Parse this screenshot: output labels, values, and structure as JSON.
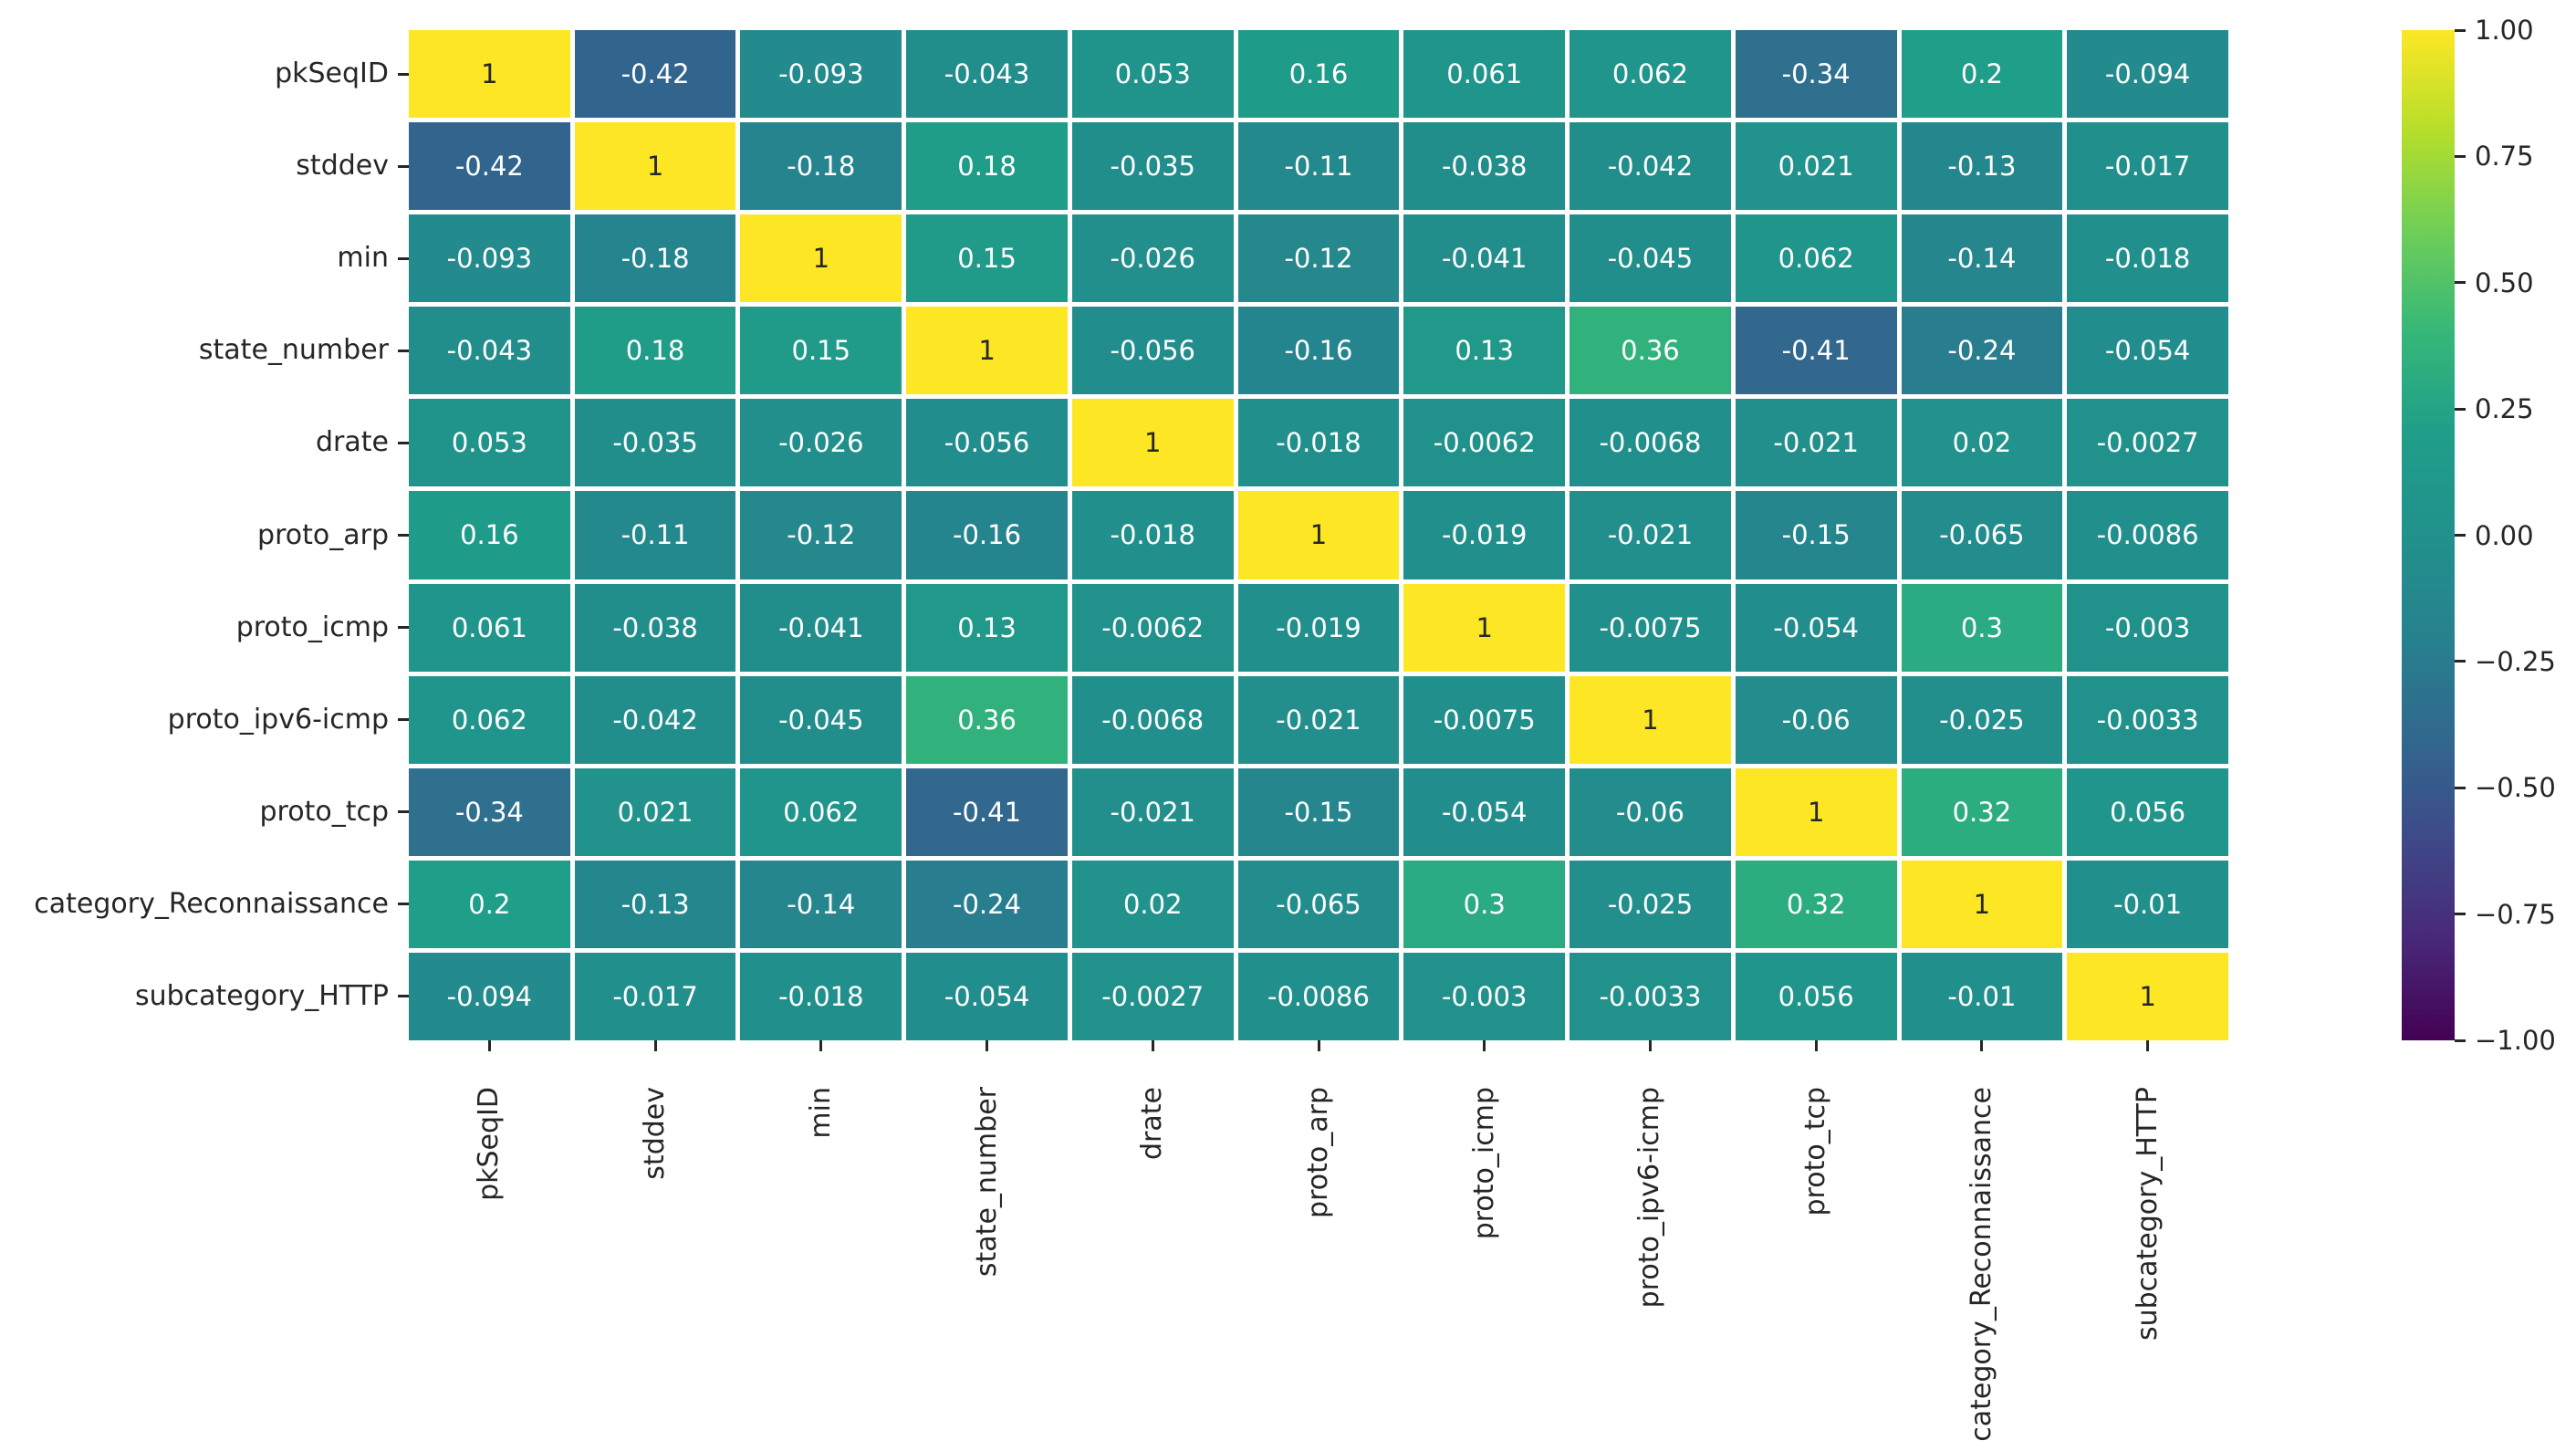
{
  "chart_data": {
    "type": "heatmap",
    "title": "",
    "xlabel": "",
    "ylabel": "",
    "colormap": "viridis",
    "vmin": -1,
    "vmax": 1,
    "grid_line_color": "#ffffff",
    "annotation_color_light": "#ffffff",
    "annotation_color_dark": "#262626",
    "legend_position": "right-colorbar",
    "labels": [
      "pkSeqID",
      "stddev",
      "min",
      "state_number",
      "drate",
      "proto_arp",
      "proto_icmp",
      "proto_ipv6-icmp",
      "proto_tcp",
      "category_Reconnaissance",
      "subcategory_HTTP"
    ],
    "matrix_display": [
      [
        "1",
        "-0.42",
        "-0.093",
        "-0.043",
        "0.053",
        "0.16",
        "0.061",
        "0.062",
        "-0.34",
        "0.2",
        "-0.094"
      ],
      [
        "-0.42",
        "1",
        "-0.18",
        "0.18",
        "-0.035",
        "-0.11",
        "-0.038",
        "-0.042",
        "0.021",
        "-0.13",
        "-0.017"
      ],
      [
        "-0.093",
        "-0.18",
        "1",
        "0.15",
        "-0.026",
        "-0.12",
        "-0.041",
        "-0.045",
        "0.062",
        "-0.14",
        "-0.018"
      ],
      [
        "-0.043",
        "0.18",
        "0.15",
        "1",
        "-0.056",
        "-0.16",
        "0.13",
        "0.36",
        "-0.41",
        "-0.24",
        "-0.054"
      ],
      [
        "0.053",
        "-0.035",
        "-0.026",
        "-0.056",
        "1",
        "-0.018",
        "-0.0062",
        "-0.0068",
        "-0.021",
        "0.02",
        "-0.0027"
      ],
      [
        "0.16",
        "-0.11",
        "-0.12",
        "-0.16",
        "-0.018",
        "1",
        "-0.019",
        "-0.021",
        "-0.15",
        "-0.065",
        "-0.0086"
      ],
      [
        "0.061",
        "-0.038",
        "-0.041",
        "0.13",
        "-0.0062",
        "-0.019",
        "1",
        "-0.0075",
        "-0.054",
        "0.3",
        "-0.003"
      ],
      [
        "0.062",
        "-0.042",
        "-0.045",
        "0.36",
        "-0.0068",
        "-0.021",
        "-0.0075",
        "1",
        "-0.06",
        "-0.025",
        "-0.0033"
      ],
      [
        "-0.34",
        "0.021",
        "0.062",
        "-0.41",
        "-0.021",
        "-0.15",
        "-0.054",
        "-0.06",
        "1",
        "0.32",
        "0.056"
      ],
      [
        "0.2",
        "-0.13",
        "-0.14",
        "-0.24",
        "0.02",
        "-0.065",
        "0.3",
        "-0.025",
        "0.32",
        "1",
        "-0.01"
      ],
      [
        "-0.094",
        "-0.017",
        "-0.018",
        "-0.054",
        "-0.0027",
        "-0.0086",
        "-0.003",
        "-0.0033",
        "0.056",
        "-0.01",
        "1"
      ]
    ],
    "colorbar_ticks": [
      "1.00",
      "0.75",
      "0.50",
      "0.25",
      "0.00",
      "−0.25",
      "−0.50",
      "−0.75",
      "−1.00"
    ]
  }
}
